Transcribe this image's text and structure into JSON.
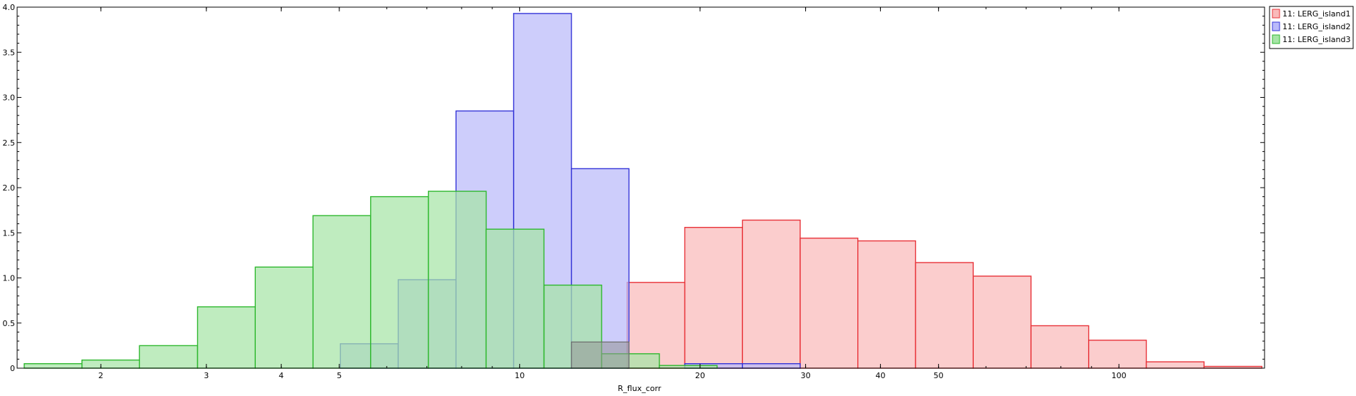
{
  "chart_data": {
    "type": "bar",
    "subtype": "histogram",
    "x_scale": "log",
    "xlabel": "R_flux_corr",
    "ylabel": "",
    "xlim": [
      1.45,
      175
    ],
    "ylim": [
      0,
      4.0
    ],
    "y_ticks": [
      "0",
      "0.5",
      "1.0",
      "1.5",
      "2.0",
      "2.5",
      "3.0",
      "3.5",
      "4.0"
    ],
    "x_ticks": [
      "2",
      "3",
      "4",
      "5",
      "10",
      "20",
      "30",
      "40",
      "50",
      "100"
    ],
    "grid": false,
    "legend_position": "top-right",
    "series": [
      {
        "name": "11: LERG_island1",
        "fill": "#f9baba",
        "stroke": "#e8343a",
        "bins": [
          {
            "x0": 15.11,
            "x1": 18.86,
            "value": 0.95
          },
          {
            "x0": 18.86,
            "x1": 23.54,
            "value": 1.56
          },
          {
            "x0": 23.54,
            "x1": 29.38,
            "value": 1.64
          },
          {
            "x0": 29.38,
            "x1": 36.67,
            "value": 1.44
          },
          {
            "x0": 36.67,
            "x1": 45.78,
            "value": 1.41
          },
          {
            "x0": 45.78,
            "x1": 57.14,
            "value": 1.17
          },
          {
            "x0": 57.14,
            "x1": 71.33,
            "value": 1.02
          },
          {
            "x0": 71.33,
            "x1": 89.03,
            "value": 0.47
          },
          {
            "x0": 89.03,
            "x1": 111.1,
            "value": 0.31
          },
          {
            "x0": 111.1,
            "x1": 138.7,
            "value": 0.07
          },
          {
            "x0": 138.7,
            "x1": 173.2,
            "value": 0.02
          }
        ]
      },
      {
        "name": "11: LERG_island2",
        "fill": "#babafa",
        "stroke": "#3535d8",
        "bins": [
          {
            "x0": 5.02,
            "x1": 6.27,
            "value": 0.27
          },
          {
            "x0": 6.27,
            "x1": 7.83,
            "value": 0.98
          },
          {
            "x0": 7.83,
            "x1": 9.77,
            "value": 2.85
          },
          {
            "x0": 9.77,
            "x1": 12.2,
            "value": 3.93
          },
          {
            "x0": 12.2,
            "x1": 15.22,
            "value": 2.21
          },
          {
            "x0": 18.86,
            "x1": 23.54,
            "value": 0.05
          },
          {
            "x0": 23.54,
            "x1": 29.38,
            "value": 0.05
          }
        ]
      },
      {
        "name": "11: LERG_island3",
        "fill": "#a6e4a6",
        "stroke": "#2fb82f",
        "bins": [
          {
            "x0": 1.49,
            "x1": 1.86,
            "value": 0.05
          },
          {
            "x0": 1.86,
            "x1": 2.32,
            "value": 0.09
          },
          {
            "x0": 2.32,
            "x1": 2.9,
            "value": 0.25
          },
          {
            "x0": 2.9,
            "x1": 3.62,
            "value": 0.68
          },
          {
            "x0": 3.62,
            "x1": 4.52,
            "value": 1.12
          },
          {
            "x0": 4.52,
            "x1": 5.64,
            "value": 1.69
          },
          {
            "x0": 5.64,
            "x1": 7.04,
            "value": 1.9
          },
          {
            "x0": 7.04,
            "x1": 8.79,
            "value": 1.96
          },
          {
            "x0": 8.79,
            "x1": 10.98,
            "value": 1.54
          },
          {
            "x0": 10.98,
            "x1": 13.7,
            "value": 0.92
          },
          {
            "x0": 13.7,
            "x1": 17.1,
            "value": 0.16
          },
          {
            "x0": 17.1,
            "x1": 21.35,
            "value": 0.03
          }
        ]
      }
    ],
    "overlays": [
      {
        "x0": 12.2,
        "x1": 15.22,
        "value": 0.29,
        "fill": "#949494",
        "stroke": "#6b6b6b"
      }
    ]
  }
}
